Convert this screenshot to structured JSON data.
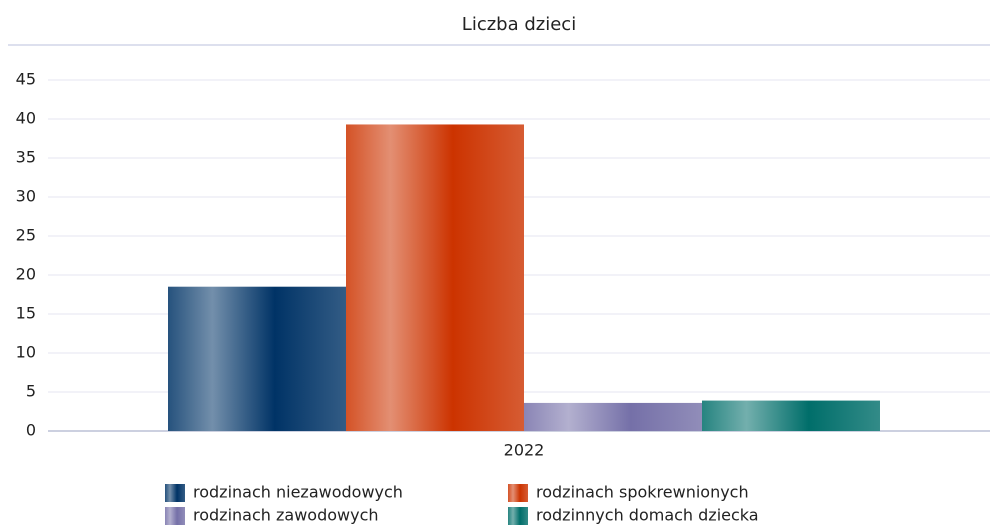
{
  "chart_data": {
    "type": "bar",
    "title": "Liczba dzieci",
    "categories": [
      "2022"
    ],
    "series": [
      {
        "name": "rodzinach niezawodowych",
        "color": "#003366",
        "values": [
          18.5
        ]
      },
      {
        "name": "rodzinach spokrewnionych",
        "color": "#cc3300",
        "values": [
          39.3
        ]
      },
      {
        "name": "rodzinach zawodowych",
        "color": "#7570a8",
        "values": [
          3.6
        ]
      },
      {
        "name": "rodzinnych domach dziecka",
        "color": "#006e6a",
        "values": [
          3.9
        ]
      }
    ],
    "ylim": [
      0,
      45
    ],
    "yticks": [
      0,
      5,
      10,
      15,
      20,
      25,
      30,
      35,
      40,
      45
    ],
    "grid": true
  }
}
